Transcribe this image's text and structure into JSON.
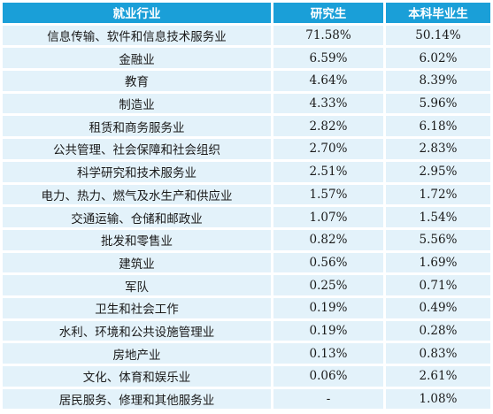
{
  "table": {
    "headers": [
      "就业行业",
      "研究生",
      "本科毕业生"
    ],
    "rows": [
      [
        "信息传输、软件和信息技术服务业",
        "71.58%",
        "50.14%"
      ],
      [
        "金融业",
        "6.59%",
        "6.02%"
      ],
      [
        "教育",
        "4.64%",
        "8.39%"
      ],
      [
        "制造业",
        "4.33%",
        "5.96%"
      ],
      [
        "租赁和商务服务业",
        "2.82%",
        "6.18%"
      ],
      [
        "公共管理、社会保障和社会组织",
        "2.70%",
        "2.83%"
      ],
      [
        "科学研究和技术服务业",
        "2.51%",
        "2.95%"
      ],
      [
        "电力、热力、燃气及水生产和供应业",
        "1.57%",
        "1.72%"
      ],
      [
        "交通运输、仓储和邮政业",
        "1.07%",
        "1.54%"
      ],
      [
        "批发和零售业",
        "0.82%",
        "5.56%"
      ],
      [
        "建筑业",
        "0.56%",
        "1.69%"
      ],
      [
        "军队",
        "0.25%",
        "0.71%"
      ],
      [
        "卫生和社会工作",
        "0.19%",
        "0.49%"
      ],
      [
        "水利、环境和公共设施管理业",
        "0.19%",
        "0.28%"
      ],
      [
        "房地产业",
        "0.13%",
        "0.83%"
      ],
      [
        "文化、体育和娱乐业",
        "0.06%",
        "2.61%"
      ],
      [
        "居民服务、修理和其他服务业",
        "-",
        "1.08%"
      ]
    ]
  },
  "colors": {
    "header_bg": "#1a9fd8",
    "row_bg": "#e3f2fa"
  }
}
